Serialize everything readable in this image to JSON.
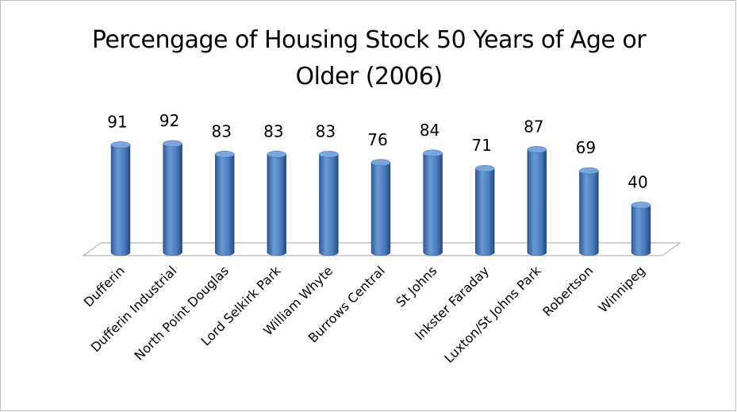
{
  "chart_data": {
    "type": "bar",
    "title": "Percengage of Housing Stock 50 Years of Age or Older (2006)",
    "categories": [
      "Dufferin",
      "Dufferin Industrial",
      "North Point Douglas",
      "Lord Selkirk Park",
      "William Whyte",
      "Burrows Central",
      "St Johns",
      "Inkster Faraday",
      "Luxton/St Johns Park",
      "Robertson",
      "Winnipeg"
    ],
    "values": [
      91,
      92,
      83,
      83,
      83,
      76,
      84,
      71,
      87,
      69,
      40
    ],
    "color": "#4f81bd"
  }
}
